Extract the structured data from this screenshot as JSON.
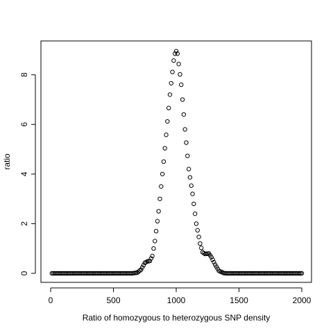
{
  "chart_data": {
    "type": "scatter",
    "title": "",
    "xlabel": "Ratio of homozygous to heterozygous SNP density",
    "ylabel": "ratio",
    "xlim": [
      0,
      2000
    ],
    "ylim": [
      0,
      9
    ],
    "x_ticks": [
      0,
      500,
      1000,
      1500,
      2000
    ],
    "y_ticks": [
      0,
      2,
      4,
      6,
      8
    ],
    "x_tick_labels": [
      "0",
      "500",
      "1000",
      "1500",
      "2000"
    ],
    "y_tick_labels": [
      "0",
      "2",
      "4",
      "6",
      "8"
    ],
    "grid": false,
    "legend": "none",
    "series": [
      {
        "marker": "open-circle",
        "x_range": [
          10,
          2000
        ],
        "x_step": 10,
        "profile": [
          [
            10,
            0.0
          ],
          [
            650,
            0.0
          ],
          [
            690,
            0.03
          ],
          [
            720,
            0.15
          ],
          [
            750,
            0.42
          ],
          [
            770,
            0.48
          ],
          [
            790,
            0.5
          ],
          [
            810,
            0.7
          ],
          [
            830,
            1.3
          ],
          [
            860,
            2.5
          ],
          [
            900,
            4.5
          ],
          [
            950,
            7.2
          ],
          [
            985,
            8.8
          ],
          [
            1000,
            8.95
          ],
          [
            1010,
            8.85
          ],
          [
            1040,
            7.6
          ],
          [
            1070,
            5.8
          ],
          [
            1100,
            4.2
          ],
          [
            1130,
            3.2
          ],
          [
            1160,
            2.0
          ],
          [
            1190,
            1.2
          ],
          [
            1210,
            0.85
          ],
          [
            1230,
            0.78
          ],
          [
            1260,
            0.8
          ],
          [
            1280,
            0.65
          ],
          [
            1310,
            0.35
          ],
          [
            1340,
            0.1
          ],
          [
            1380,
            0.01
          ],
          [
            1400,
            0.0
          ],
          [
            2000,
            0.0
          ]
        ]
      }
    ]
  }
}
